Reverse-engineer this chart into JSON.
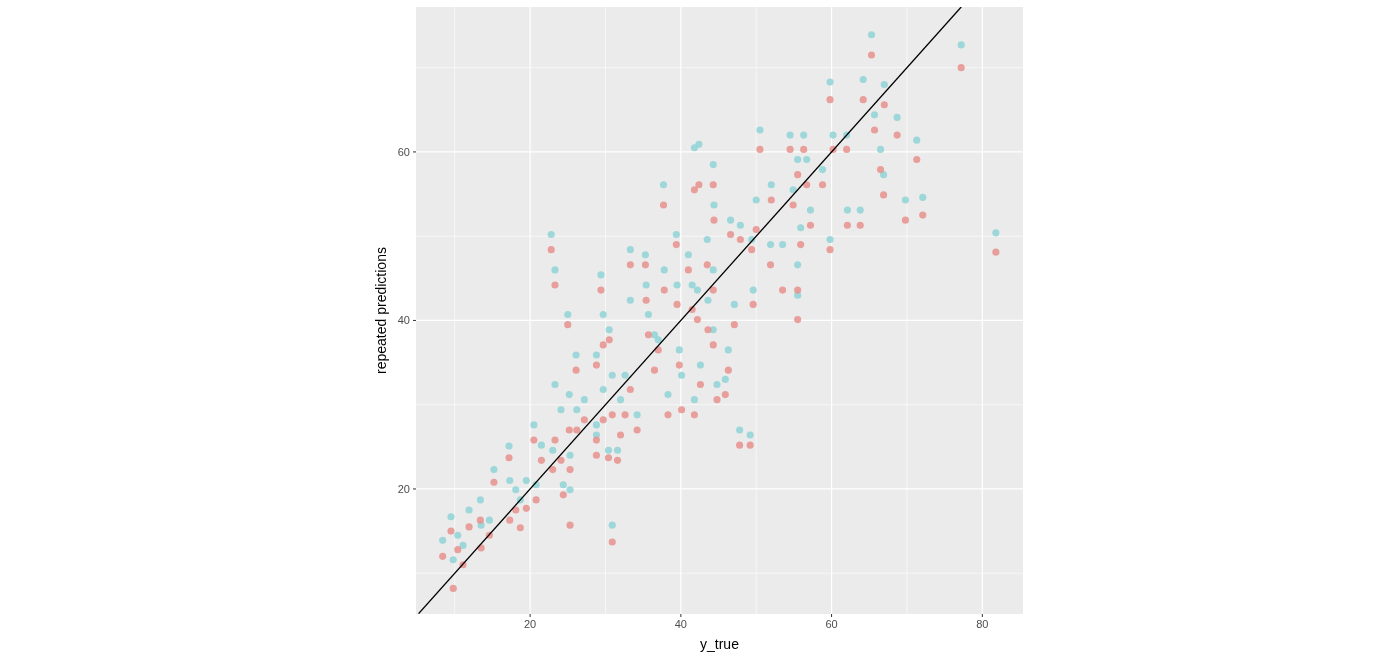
{
  "chart_data": {
    "type": "scatter",
    "xlabel": "y_true",
    "ylabel": "repeated predictions",
    "xlim": [
      4.86,
      85.4
    ],
    "ylim": [
      5.16,
      77.2
    ],
    "xticks": [
      20,
      40,
      60,
      80
    ],
    "yticks": [
      20,
      40,
      60
    ],
    "grid": true,
    "marker": "circle",
    "x": [
      8.4,
      9.5,
      9.8,
      10.4,
      11.1,
      11.9,
      13.4,
      13.5,
      14.6,
      15.2,
      17.2,
      17.3,
      18.1,
      18.7,
      19.5,
      20.5,
      20.8,
      21.5,
      22.8,
      23.3,
      23.3,
      23,
      24.1,
      24.4,
      25,
      25.2,
      25.3,
      25.3,
      26.1,
      26.2,
      27.2,
      28.8,
      28.8,
      28.8,
      29.4,
      29.7,
      29.7,
      30.5,
      30.4,
      30.9,
      30.9,
      31.6,
      32,
      32.6,
      33.3,
      33.3,
      34.2,
      35.3,
      35.4,
      35.7,
      36.5,
      37,
      37.8,
      37.7,
      38.3,
      39.4,
      39.5,
      39.8,
      40.1,
      41,
      41.5,
      41.8,
      41.8,
      42.2,
      42.4,
      42.6,
      43.5,
      43.6,
      44.3,
      44.4,
      44.3,
      44.3,
      44.8,
      45.9,
      46.3,
      46.6,
      47.1,
      47.8,
      47.9,
      49.2,
      49.4,
      49.6,
      50,
      50.5,
      52,
      51.9,
      53.5,
      54.5,
      54.9,
      55.5,
      55.5,
      55.5,
      55.9,
      56.3,
      56.7,
      57.2,
      58.8,
      59.8,
      59.8,
      60.2,
      62,
      62.1,
      63.8,
      64.2,
      65.3,
      65.7,
      66.5,
      66.9,
      67,
      68.7,
      69.8,
      71.3,
      72.1,
      77.2,
      81.8
    ],
    "series": [
      {
        "color": "#8fd3d6",
        "values": [
          13.9,
          16.7,
          11.6,
          14.5,
          13.3,
          17.5,
          18.7,
          15.7,
          16.3,
          22.3,
          25.1,
          21,
          19.9,
          18.7,
          21,
          27.6,
          20.5,
          25.2,
          50.2,
          46,
          32.4,
          24.6,
          29.4,
          20.5,
          40.7,
          31.2,
          24,
          19.9,
          35.9,
          29.4,
          30.6,
          35.9,
          27.6,
          26.4,
          45.4,
          40.7,
          31.8,
          38.9,
          24.6,
          33.5,
          15.7,
          24.6,
          30.6,
          33.5,
          48.4,
          42.4,
          28.8,
          47.8,
          44.2,
          40.7,
          38.3,
          37.7,
          46,
          56.1,
          31.2,
          50.2,
          44.2,
          36.5,
          33.5,
          47.8,
          44.2,
          60.5,
          30.6,
          43.6,
          60.9,
          34.7,
          49.6,
          42.4,
          58.5,
          53.7,
          46,
          38.9,
          32.4,
          33,
          36.5,
          51.9,
          41.9,
          27,
          51.3,
          26.4,
          49.6,
          43.6,
          54.3,
          62.6,
          56.1,
          49,
          49,
          62,
          55.5,
          46.6,
          43,
          59.1,
          51,
          62,
          59.1,
          53.1,
          57.9,
          49.6,
          68.3,
          62,
          62,
          53.1,
          53.1,
          68.6,
          73.9,
          64.4,
          60.3,
          57.3,
          68,
          64.1,
          54.3,
          61.4,
          54.6,
          72.7,
          50.4
        ]
      },
      {
        "color": "#e8908c",
        "values": [
          12,
          15,
          8.2,
          12.8,
          11,
          15.5,
          16.3,
          13,
          14.5,
          20.8,
          23.7,
          16.3,
          17.5,
          15.4,
          17.7,
          25.8,
          18.7,
          23.4,
          48.4,
          44.2,
          25.8,
          22.3,
          23.4,
          19.3,
          39.5,
          27,
          22.3,
          15.7,
          34.1,
          27,
          28.2,
          34.7,
          25.8,
          24,
          43.6,
          37.1,
          28.2,
          37.7,
          23.7,
          28.8,
          13.7,
          23.4,
          26.4,
          28.8,
          46.6,
          31.8,
          27,
          46.6,
          42.4,
          38.3,
          34.1,
          36.5,
          43.6,
          53.7,
          28.8,
          49,
          41.9,
          34.7,
          29.4,
          46,
          41.3,
          55.5,
          28.8,
          40.1,
          56.1,
          32.4,
          46.6,
          38.9,
          56.1,
          51.9,
          43.6,
          37.1,
          30.6,
          31.2,
          34.1,
          50.2,
          39.5,
          25.2,
          49.6,
          25.2,
          48.4,
          41.9,
          50.8,
          60.3,
          54.3,
          46.6,
          43.6,
          60.3,
          53.7,
          43.6,
          40.1,
          57.3,
          49,
          60.3,
          56.1,
          51.3,
          56.1,
          48.4,
          66.2,
          60.3,
          60.3,
          51.3,
          51.3,
          66.2,
          71.5,
          62.6,
          57.9,
          54.9,
          65.6,
          62,
          51.9,
          59.1,
          52.5,
          70,
          48.1
        ]
      },
      {
        "type": "line",
        "color": "#000000",
        "marker": "none",
        "x": [
          5.2,
          77.2
        ],
        "values": [
          5.2,
          77.2
        ]
      }
    ]
  }
}
